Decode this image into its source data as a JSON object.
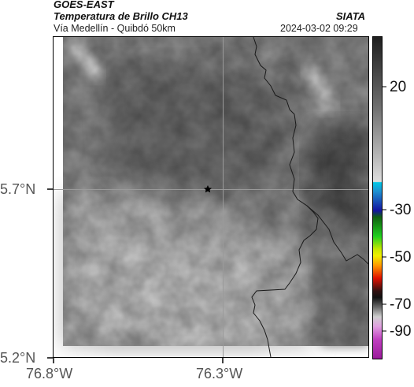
{
  "header": {
    "satellite": "GOES-EAST",
    "product": "Temperatura de Brillo CH13",
    "org": "SIATA",
    "region": "Vía Medellín - Quibdó 50km",
    "datetime": "2024-03-02 09:29"
  },
  "map": {
    "lat_labels": [
      "5.7°N",
      "5.2°N"
    ],
    "lon_labels": [
      "76.8°W",
      "76.3°W"
    ],
    "marker_icon": "star-icon",
    "colors": {
      "frame": "#000000",
      "gridline": "#9a9a9a",
      "border_line": "#1a1a1a"
    }
  },
  "colorbar": {
    "tick_labels": [
      "20",
      "-30",
      "-50",
      "-70",
      "-90"
    ],
    "colors": {
      "warm_top": "#1e1e1e",
      "warm_bottom": "#dedede",
      "cyan": "#00c8e6",
      "blue": "#1414a0",
      "green": "#20d020",
      "yellow": "#f0f000",
      "red": "#e01000",
      "dark": "#101010",
      "magenta": "#c040c0"
    }
  }
}
